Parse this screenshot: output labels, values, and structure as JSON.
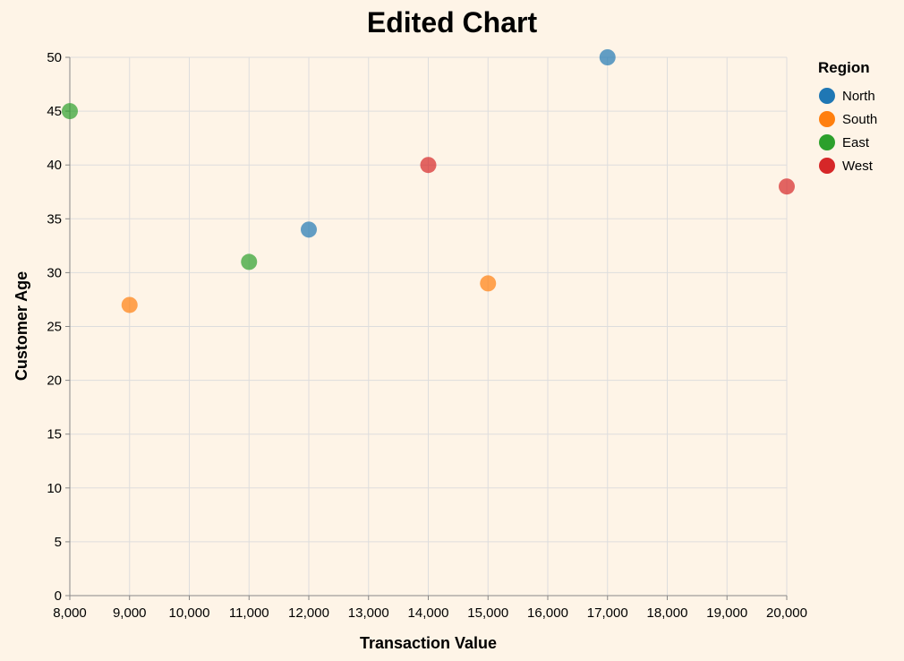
{
  "chart_data": {
    "type": "scatter",
    "title": "Edited Chart",
    "xlabel": "Transaction Value",
    "ylabel": "Customer Age",
    "xlim": [
      8000,
      20000
    ],
    "ylim": [
      0,
      50
    ],
    "x_ticks": [
      8000,
      9000,
      10000,
      11000,
      12000,
      13000,
      14000,
      15000,
      16000,
      17000,
      18000,
      19000,
      20000
    ],
    "x_tick_labels": [
      "8,000",
      "9,000",
      "10,000",
      "11,000",
      "12,000",
      "13,000",
      "14,000",
      "15,000",
      "16,000",
      "17,000",
      "18,000",
      "19,000",
      "20,000"
    ],
    "y_ticks": [
      0,
      5,
      10,
      15,
      20,
      25,
      30,
      35,
      40,
      45,
      50
    ],
    "y_tick_labels": [
      "0",
      "5",
      "10",
      "15",
      "20",
      "25",
      "30",
      "35",
      "40",
      "45",
      "50"
    ],
    "grid": true,
    "legend": {
      "title": "Region",
      "placement": "right"
    },
    "series": [
      {
        "name": "North",
        "color": "#1f77b4",
        "points": [
          {
            "x": 12000,
            "y": 34
          },
          {
            "x": 17000,
            "y": 50
          }
        ]
      },
      {
        "name": "South",
        "color": "#ff7f0e",
        "points": [
          {
            "x": 9000,
            "y": 27
          },
          {
            "x": 15000,
            "y": 29
          }
        ]
      },
      {
        "name": "East",
        "color": "#2ca02c",
        "points": [
          {
            "x": 8000,
            "y": 45
          },
          {
            "x": 11000,
            "y": 31
          }
        ]
      },
      {
        "name": "West",
        "color": "#d62728",
        "points": [
          {
            "x": 14000,
            "y": 40
          },
          {
            "x": 20000,
            "y": 38
          }
        ]
      }
    ]
  }
}
